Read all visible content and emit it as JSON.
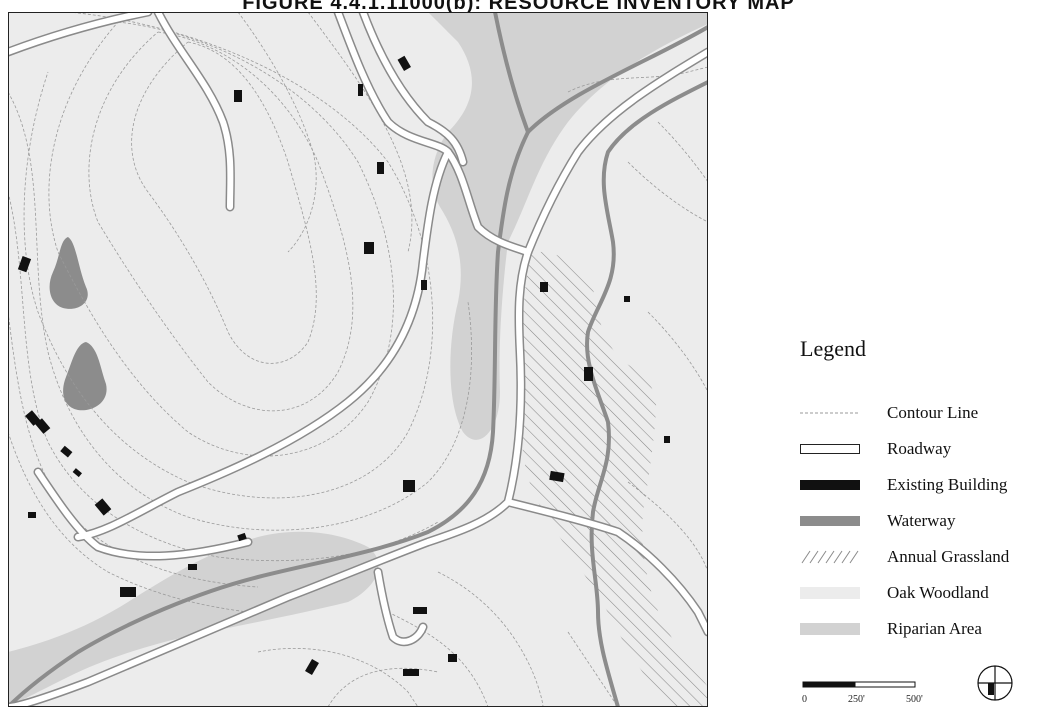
{
  "title": "FIGURE 4.4.1.11000(b): RESOURCE INVENTORY MAP",
  "legend": {
    "title": "Legend",
    "items": [
      {
        "label": "Contour Line",
        "type": "contour"
      },
      {
        "label": "Roadway",
        "type": "road"
      },
      {
        "label": "Existing Building",
        "type": "building"
      },
      {
        "label": "Waterway",
        "type": "waterway"
      },
      {
        "label": "Annual Grassland",
        "type": "grassland"
      },
      {
        "label": "Oak Woodland",
        "type": "woodland"
      },
      {
        "label": "Riparian Area",
        "type": "riparian"
      }
    ]
  },
  "scale": {
    "ticks": [
      "0",
      "250'",
      "500'"
    ]
  },
  "colors": {
    "woodland": "#ececec",
    "riparian": "#d2d2d2",
    "waterway": "#8c8c8c",
    "building": "#111111",
    "road_fill": "#ffffff",
    "road_edge": "#8a8a8a",
    "contour": "#9a9a9a"
  },
  "north_arrow": {
    "icon": "north-arrow-icon"
  }
}
